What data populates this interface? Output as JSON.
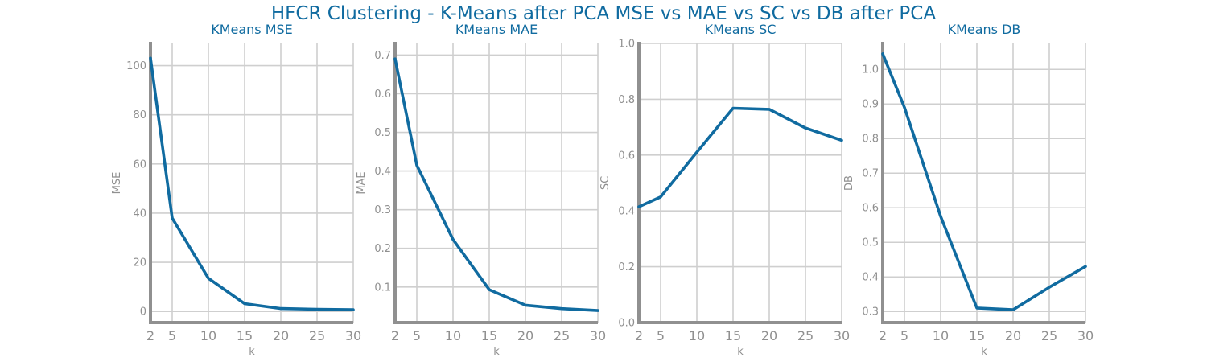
{
  "suptitle": "HFCR Clustering - K-Means after PCA MSE vs MAE vs SC vs DB after PCA",
  "colors": {
    "line": "#106ba0",
    "axis": "#909090",
    "grid": "#cfcfcf",
    "title": "#106ba0",
    "tick": "#909090"
  },
  "chart_data": [
    {
      "type": "line",
      "title": "KMeans MSE",
      "xlabel": "k",
      "ylabel": "MSE",
      "x": [
        2,
        5,
        10,
        15,
        20,
        25,
        30
      ],
      "xticks": [
        "2",
        "5",
        "10",
        "15",
        "20",
        "25",
        "30"
      ],
      "xlim": [
        2,
        30
      ],
      "series": [
        {
          "values": [
            103,
            38,
            13.5,
            3.2,
            1.2,
            0.9,
            0.7
          ]
        }
      ],
      "yticks": [
        "0",
        "20",
        "40",
        "60",
        "80",
        "100"
      ],
      "ytick_values": [
        0,
        20,
        40,
        60,
        80,
        100
      ],
      "ylim": [
        -4.5,
        109
      ],
      "grid": true
    },
    {
      "type": "line",
      "title": "KMeans MAE",
      "xlabel": "k",
      "ylabel": "MAE",
      "x": [
        2,
        5,
        10,
        15,
        20,
        25,
        30
      ],
      "xticks": [
        "2",
        "5",
        "10",
        "15",
        "20",
        "25",
        "30"
      ],
      "xlim": [
        2,
        30
      ],
      "series": [
        {
          "values": [
            0.69,
            0.415,
            0.223,
            0.093,
            0.053,
            0.044,
            0.039
          ]
        }
      ],
      "yticks": [
        "0.1",
        "0.2",
        "0.3",
        "0.4",
        "0.5",
        "0.6",
        "0.7"
      ],
      "ytick_values": [
        0.1,
        0.2,
        0.3,
        0.4,
        0.5,
        0.6,
        0.7
      ],
      "ylim": [
        0.008,
        0.73
      ],
      "grid": true
    },
    {
      "type": "line",
      "title": "KMeans SC",
      "xlabel": "k",
      "ylabel": "SC",
      "x": [
        2,
        5,
        10,
        15,
        20,
        25,
        30
      ],
      "xticks": [
        "2",
        "5",
        "10",
        "15",
        "20",
        "25",
        "30"
      ],
      "xlim": [
        2,
        30
      ],
      "series": [
        {
          "values": [
            0.415,
            0.45,
            0.61,
            0.768,
            0.764,
            0.697,
            0.653
          ]
        }
      ],
      "yticks": [
        "0.0",
        "0.2",
        "0.4",
        "0.6",
        "0.8",
        "1.0"
      ],
      "ytick_values": [
        0,
        0.2,
        0.4,
        0.6,
        0.8,
        1.0
      ],
      "ylim": [
        0,
        1.0
      ],
      "grid": true
    },
    {
      "type": "line",
      "title": "KMeans DB",
      "xlabel": "k",
      "ylabel": "DB",
      "x": [
        2,
        5,
        10,
        15,
        20,
        25,
        30
      ],
      "xticks": [
        "2",
        "5",
        "10",
        "15",
        "20",
        "25",
        "30"
      ],
      "xlim": [
        2,
        30
      ],
      "series": [
        {
          "values": [
            1.045,
            0.89,
            0.575,
            0.31,
            0.305,
            0.37,
            0.43
          ]
        }
      ],
      "yticks": [
        "0.3",
        "0.4",
        "0.5",
        "0.6",
        "0.7",
        "0.8",
        "0.9",
        "1.0"
      ],
      "ytick_values": [
        0.3,
        0.4,
        0.5,
        0.6,
        0.7,
        0.8,
        0.9,
        1.0
      ],
      "ylim": [
        0.268,
        1.075
      ],
      "grid": true
    }
  ]
}
